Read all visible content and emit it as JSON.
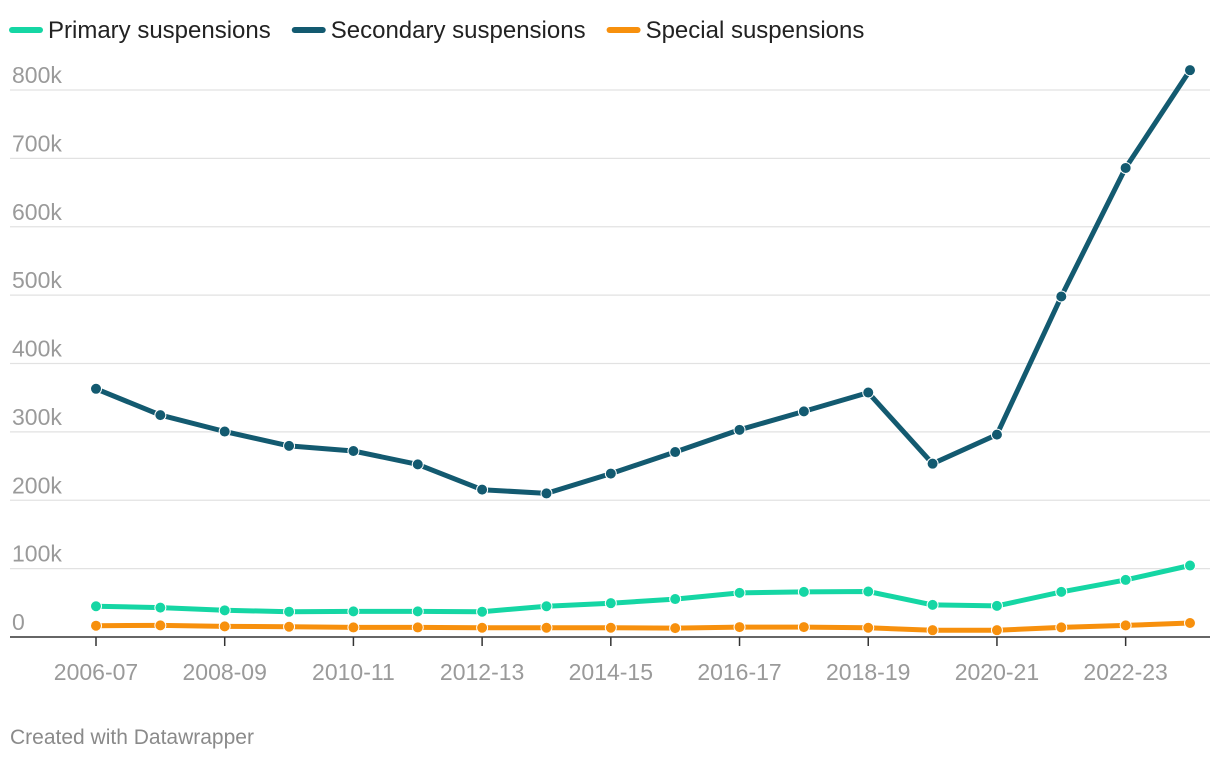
{
  "chart_data": {
    "type": "line",
    "title": "",
    "xlabel": "",
    "ylabel": "",
    "x": [
      "2006-07",
      "2007-08",
      "2008-09",
      "2009-10",
      "2010-11",
      "2011-12",
      "2012-13",
      "2013-14",
      "2014-15",
      "2015-16",
      "2016-17",
      "2017-18",
      "2018-19",
      "2019-20",
      "2020-21",
      "2021-22",
      "2022-23",
      "2023-24"
    ],
    "x_tick_labels": [
      "2006-07",
      "2008-09",
      "2010-11",
      "2012-13",
      "2014-15",
      "2016-17",
      "2018-19",
      "2020-21",
      "2022-23"
    ],
    "ylim": [
      0,
      800000
    ],
    "y_ticks": [
      0,
      100000,
      200000,
      300000,
      400000,
      500000,
      600000,
      700000,
      800000
    ],
    "y_tick_labels": [
      "0",
      "100k",
      "200k",
      "300k",
      "400k",
      "500k",
      "600k",
      "700k",
      "800k"
    ],
    "grid": true,
    "legend": "top-left",
    "series": [
      {
        "name": "Primary suspensions",
        "color": "#15d6a4",
        "values": [
          45000,
          43000,
          39000,
          37000,
          37500,
          37500,
          37000,
          45000,
          49500,
          55500,
          64500,
          66000,
          66500,
          47000,
          45500,
          66000,
          83500,
          104500
        ]
      },
      {
        "name": "Secondary suspensions",
        "color": "#135a70",
        "values": [
          363000,
          324500,
          300500,
          279500,
          272000,
          252500,
          215500,
          210000,
          239000,
          270500,
          303000,
          330000,
          357500,
          253500,
          296000,
          498000,
          686000,
          829000
        ]
      },
      {
        "name": "Special suspensions",
        "color": "#f7900d",
        "values": [
          16500,
          17000,
          15500,
          15000,
          14000,
          14000,
          13500,
          13500,
          13500,
          13000,
          14500,
          14500,
          13500,
          10000,
          10000,
          14000,
          17000,
          20500
        ]
      }
    ]
  },
  "footer": "Created with Datawrapper"
}
